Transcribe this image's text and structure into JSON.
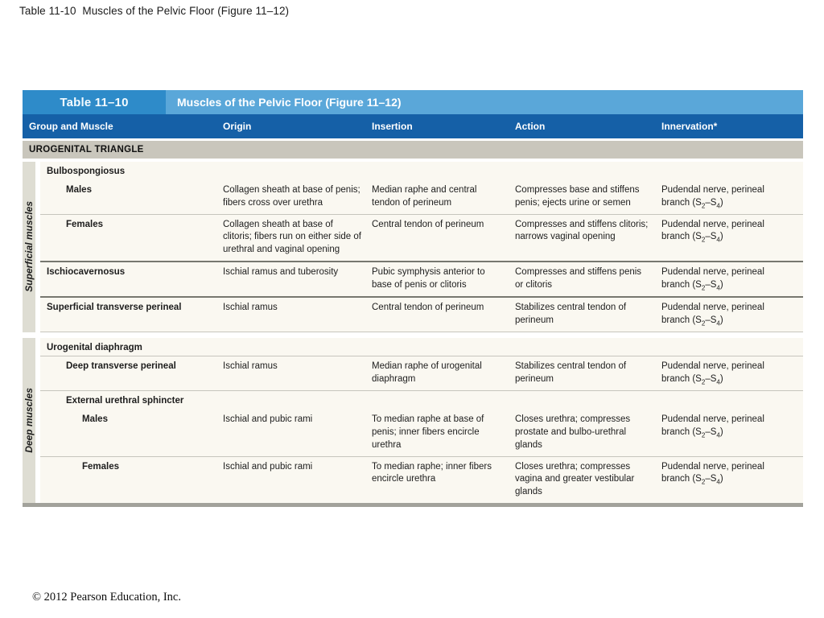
{
  "slide": {
    "title": "Table 11-10  Muscles of the Pelvic Floor (Figure 11–12)",
    "copyright": "© 2012 Pearson Education, Inc."
  },
  "table": {
    "label": "Table 11–10",
    "title": "Muscles of the Pelvic Floor (Figure 11–12)",
    "columns": [
      "Group and Muscle",
      "Origin",
      "Insertion",
      "Action",
      "Innervation*"
    ],
    "section_banner": "UROGENITAL TRIANGLE",
    "colors": {
      "label_box_blue": "#2e8bc9",
      "title_bar_blue": "#5aa7d9",
      "column_header_navy": "#1560a7",
      "banner_gray": "#c9c6bc",
      "row_cream": "#faf8f1",
      "strip_gray": "#deddd3"
    },
    "groups": [
      {
        "side_label": "Superficial muscles",
        "rows": [
          {
            "type": "heading",
            "label": "Bulbospongiosus",
            "indent": 0,
            "divider": "none"
          },
          {
            "type": "data",
            "label": "Males",
            "indent": 1,
            "origin": "Collagen sheath at base of penis; fibers cross over urethra",
            "insertion": "Median raphe and central tendon of perineum",
            "action": "Compresses base and stiffens penis; ejects urine or semen",
            "innervation": "Pudendal nerve, perineal branch (S2–S4)",
            "divider": "thin"
          },
          {
            "type": "data",
            "label": "Females",
            "indent": 1,
            "origin": "Collagen sheath at base of clitoris; fibers run on either side of urethral and vaginal opening",
            "insertion": "Central tendon of perineum",
            "action": "Compresses and stiffens clitoris; narrows vaginal opening",
            "innervation": "Pudendal nerve, perineal branch (S2–S4)",
            "divider": "thick"
          },
          {
            "type": "data",
            "label": "Ischiocavernosus",
            "indent": 0,
            "origin": "Ischial ramus and tuberosity",
            "insertion": "Pubic symphysis anterior to base of penis or clitoris",
            "action": "Compresses and stiffens penis or clitoris",
            "innervation": "Pudendal nerve, perineal branch (S2–S4)",
            "divider": "thick"
          },
          {
            "type": "data",
            "label": "Superficial transverse perineal",
            "indent": 0,
            "origin": "Ischial ramus",
            "insertion": "Central tendon of perineum",
            "action": "Stabilizes central tendon of perineum",
            "innervation": "Pudendal nerve, perineal branch (S2–S4)",
            "divider": "thin"
          }
        ]
      },
      {
        "side_label": "Deep muscles",
        "rows": [
          {
            "type": "heading",
            "label": "Urogenital diaphragm",
            "indent": 0,
            "divider": "thin"
          },
          {
            "type": "data",
            "label": "Deep transverse perineal",
            "indent": 1,
            "origin": "Ischial ramus",
            "insertion": "Median raphe of urogenital diaphragm",
            "action": "Stabilizes central tendon of perineum",
            "innervation": "Pudendal nerve, perineal branch (S2–S4)",
            "divider": "thin"
          },
          {
            "type": "heading",
            "label": "External urethral sphincter",
            "indent": 1,
            "divider": "none"
          },
          {
            "type": "data",
            "label": "Males",
            "indent": 2,
            "origin": "Ischial and pubic rami",
            "insertion": "To median raphe at base of penis; inner fibers encircle urethra",
            "action": "Closes urethra; compresses prostate and bulbo-urethral glands",
            "innervation": "Pudendal nerve, perineal branch (S2–S4)",
            "divider": "thin"
          },
          {
            "type": "data",
            "label": "Females",
            "indent": 2,
            "origin": "Ischial and pubic rami",
            "insertion": "To median raphe; inner fibers encircle urethra",
            "action": "Closes urethra; compresses vagina and greater vestibular glands",
            "innervation": "Pudendal nerve, perineal branch (S2–S4)",
            "divider": "none"
          }
        ]
      }
    ]
  }
}
